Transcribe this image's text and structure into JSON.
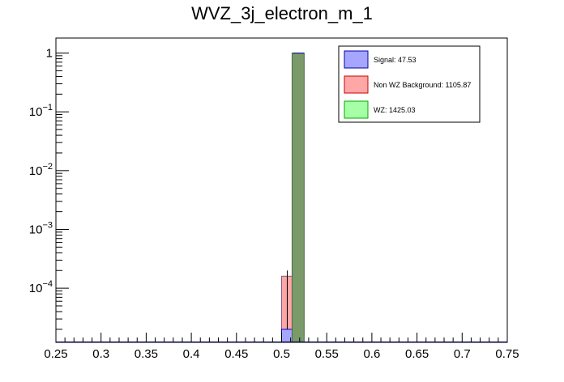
{
  "chart_data": {
    "type": "bar",
    "title": "WVZ_3j_electron_m_1",
    "xlabel": "",
    "ylabel": "",
    "x_range": [
      0.25,
      0.75
    ],
    "y_scale": "log",
    "y_range": [
      1.2e-05,
      1.8
    ],
    "bin_width": 0.0125,
    "x_ticks": [
      "0.25",
      "0.3",
      "0.35",
      "0.4",
      "0.45",
      "0.5",
      "0.55",
      "0.6",
      "0.65",
      "0.7",
      "0.75"
    ],
    "y_ticks": [
      {
        "base": "1",
        "exp": ""
      },
      {
        "base": "10",
        "exp": "−1"
      },
      {
        "base": "10",
        "exp": "−2"
      },
      {
        "base": "10",
        "exp": "−3"
      },
      {
        "base": "10",
        "exp": "−4"
      }
    ],
    "series": [
      {
        "name": "Signal: 47.53",
        "color": "#a6a6ff",
        "edge": "#0000cc",
        "bins": [
          {
            "x0": 0.5,
            "x1": 0.5125,
            "y": 2e-05
          }
        ]
      },
      {
        "name": "Non WZ Background: 1105.87",
        "color": "#ffa6a6",
        "edge": "#cc0000",
        "bins": [
          {
            "x0": 0.5,
            "x1": 0.5125,
            "y": 0.00016,
            "err": [
              2e-05,
              0.0002
            ]
          }
        ]
      },
      {
        "name": "WZ: 1425.03",
        "color": "#a6ffa6",
        "edge": "#00aa00",
        "bins": [
          {
            "x0": 0.5125,
            "x1": 0.525,
            "y": 1.0
          }
        ]
      }
    ],
    "overlap_color": "#7a9a6a",
    "legend_position": "top-right",
    "grid": false
  }
}
